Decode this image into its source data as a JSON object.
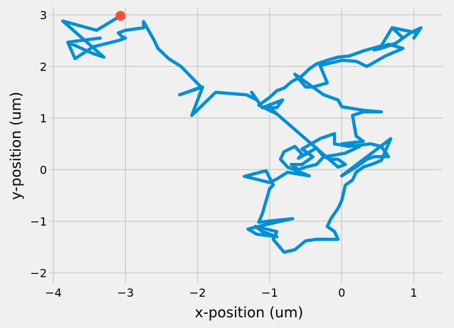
{
  "chart_data": {
    "type": "line",
    "title": "",
    "xlabel": "x-position (um)",
    "ylabel": "y-position (um)",
    "xlim": [
      -4.05,
      1.4
    ],
    "ylim": [
      -2.2,
      3.15
    ],
    "xticks": [
      -4,
      -3,
      -2,
      -1,
      0,
      1
    ],
    "yticks": [
      -2,
      -1,
      0,
      1,
      2,
      3
    ],
    "grid": true,
    "line_color": "#008fd5",
    "end_marker_color": "#fc4f30",
    "series": [
      {
        "name": "",
        "x": [
          -0.9,
          -1.0,
          -1.02,
          -0.9,
          -0.82,
          -1.1,
          -1.25,
          -1.18,
          -1.32,
          -1.75,
          -2.08,
          -1.93,
          -2.25,
          -1.95,
          -2.23,
          -2.4,
          -2.55,
          -2.6,
          -2.75,
          -2.75,
          -3.0,
          -3.1,
          -3.05,
          -3.0,
          -3.1,
          -3.45,
          -3.7,
          -3.8,
          -3.35,
          -3.8,
          -3.45,
          -3.3,
          -3.87,
          -3.4,
          -3.07
        ],
        "y": [
          1.08,
          1.2,
          1.2,
          1.2,
          1.35,
          1.2,
          1.5,
          1.35,
          1.45,
          1.5,
          1.05,
          1.6,
          1.45,
          1.6,
          2.0,
          2.15,
          2.35,
          2.5,
          2.87,
          2.75,
          2.7,
          2.65,
          2.58,
          2.55,
          2.5,
          2.38,
          2.15,
          2.47,
          2.55,
          2.47,
          2.25,
          2.18,
          2.88,
          2.7,
          2.98
        ]
      }
    ],
    "walk": [
      [
        -0.9,
        1.08
      ],
      [
        -1.15,
        1.25
      ],
      [
        -1.0,
        1.4
      ],
      [
        -0.9,
        1.53
      ],
      [
        -0.8,
        1.58
      ],
      [
        -0.7,
        1.7
      ],
      [
        -0.55,
        1.82
      ],
      [
        -0.45,
        1.95
      ],
      [
        -0.35,
        2.05
      ],
      [
        -0.2,
        2.12
      ],
      [
        -0.05,
        2.18
      ],
      [
        0.1,
        2.2
      ],
      [
        0.3,
        2.3
      ],
      [
        0.55,
        2.4
      ],
      [
        0.7,
        2.75
      ],
      [
        0.85,
        2.55
      ],
      [
        0.7,
        2.75
      ],
      [
        1.05,
        2.65
      ],
      [
        1.0,
        2.55
      ],
      [
        1.1,
        2.75
      ],
      [
        0.95,
        2.65
      ],
      [
        0.75,
        2.45
      ],
      [
        0.55,
        2.35
      ],
      [
        0.45,
        2.32
      ],
      [
        0.65,
        2.43
      ],
      [
        0.85,
        2.35
      ],
      [
        0.6,
        2.2
      ],
      [
        0.35,
        2.0
      ],
      [
        0.2,
        2.1
      ],
      [
        0.0,
        2.12
      ],
      [
        -0.05,
        2.1
      ],
      [
        -0.3,
        2.02
      ],
      [
        -0.2,
        1.68
      ],
      [
        -0.4,
        1.6
      ],
      [
        -0.5,
        1.6
      ],
      [
        -0.65,
        1.85
      ],
      [
        -0.5,
        1.7
      ],
      [
        -0.4,
        1.6
      ],
      [
        -0.25,
        1.45
      ],
      [
        -0.05,
        1.35
      ],
      [
        0.0,
        1.22
      ],
      [
        0.3,
        1.15
      ],
      [
        0.55,
        1.12
      ],
      [
        0.3,
        1.12
      ],
      [
        0.15,
        1.05
      ],
      [
        0.2,
        0.65
      ],
      [
        0.3,
        0.55
      ],
      [
        0.0,
        0.5
      ],
      [
        0.25,
        0.45
      ],
      [
        0.05,
        0.32
      ],
      [
        -0.1,
        0.28
      ],
      [
        -0.25,
        0.25
      ],
      [
        -0.35,
        0.42
      ],
      [
        -0.6,
        0.22
      ],
      [
        -0.55,
        0.3
      ],
      [
        -0.65,
        0.45
      ],
      [
        -0.8,
        0.35
      ],
      [
        -0.85,
        0.2
      ],
      [
        -0.75,
        0.05
      ],
      [
        -0.45,
        -0.12
      ],
      [
        -0.75,
        -0.05
      ],
      [
        -0.9,
        -0.18
      ],
      [
        -1.0,
        -0.25
      ],
      [
        -1.2,
        -0.18
      ],
      [
        -1.35,
        -0.13
      ],
      [
        -1.05,
        -0.02
      ],
      [
        -0.95,
        -0.3
      ],
      [
        -1.0,
        -0.37
      ],
      [
        -1.1,
        -0.85
      ],
      [
        -1.15,
        -1.02
      ],
      [
        -0.68,
        -0.95
      ],
      [
        -1.0,
        -1.05
      ],
      [
        -1.3,
        -1.15
      ],
      [
        -1.18,
        -1.25
      ],
      [
        -0.9,
        -1.3
      ],
      [
        -1.1,
        -1.2
      ],
      [
        -1.2,
        -1.1
      ],
      [
        -0.9,
        -1.2
      ],
      [
        -0.95,
        -1.35
      ],
      [
        -0.8,
        -1.6
      ],
      [
        -0.65,
        -1.55
      ],
      [
        -0.5,
        -1.38
      ],
      [
        -0.35,
        -1.35
      ],
      [
        -0.05,
        -1.35
      ],
      [
        -0.1,
        -1.2
      ],
      [
        -0.2,
        -1.1
      ],
      [
        -0.15,
        -0.95
      ],
      [
        -0.05,
        -0.75
      ],
      [
        0.0,
        -0.6
      ],
      [
        0.05,
        -0.3
      ],
      [
        0.15,
        -0.2
      ],
      [
        0.2,
        -0.05
      ],
      [
        0.3,
        0.05
      ],
      [
        0.45,
        0.12
      ],
      [
        0.55,
        0.18
      ],
      [
        0.68,
        0.6
      ],
      [
        0.35,
        0.25
      ],
      [
        0.0,
        -0.12
      ],
      [
        0.2,
        0.05
      ],
      [
        0.35,
        0.2
      ],
      [
        0.45,
        0.25
      ],
      [
        0.65,
        0.25
      ],
      [
        0.55,
        0.45
      ],
      [
        0.4,
        0.5
      ],
      [
        0.1,
        0.45
      ],
      [
        -0.1,
        0.5
      ],
      [
        -0.1,
        0.7
      ],
      [
        -0.3,
        0.6
      ],
      [
        -0.55,
        0.4
      ],
      [
        -0.4,
        0.25
      ],
      [
        -0.55,
        0.1
      ],
      [
        -0.7,
        0.1
      ],
      [
        -0.6,
        0.0
      ],
      [
        -0.6,
        0.0
      ],
      [
        -0.5,
        0.05
      ],
      [
        -0.35,
        0.1
      ],
      [
        -0.25,
        0.25
      ],
      [
        -0.15,
        0.2
      ],
      [
        -0.05,
        0.2
      ],
      [
        0.05,
        0.1
      ],
      [
        -0.05,
        0.05
      ]
    ],
    "end_point": [
      -3.07,
      2.98
    ]
  }
}
